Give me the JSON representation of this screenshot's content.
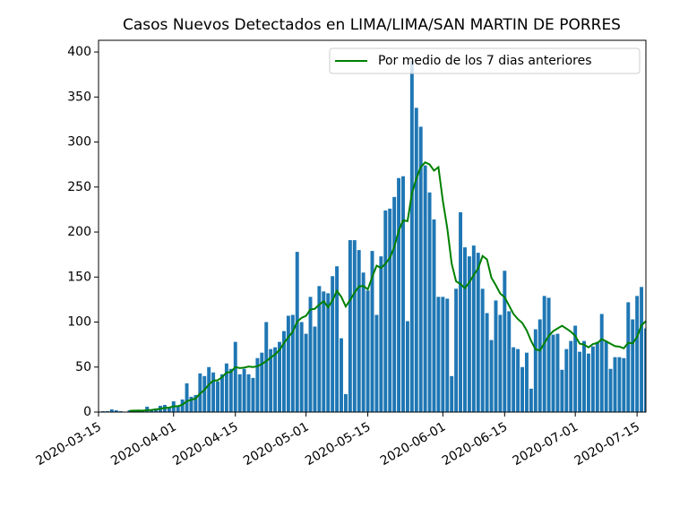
{
  "chart_data": {
    "type": "bar",
    "title": "Casos Nuevos Detectados en LIMA/LIMA/SAN MARTIN DE PORRES",
    "x": [
      "2020-03-16",
      "2020-03-17",
      "2020-03-18",
      "2020-03-19",
      "2020-03-20",
      "2020-03-21",
      "2020-03-22",
      "2020-03-23",
      "2020-03-24",
      "2020-03-25",
      "2020-03-26",
      "2020-03-27",
      "2020-03-28",
      "2020-03-29",
      "2020-03-30",
      "2020-03-31",
      "2020-04-01",
      "2020-04-02",
      "2020-04-03",
      "2020-04-04",
      "2020-04-05",
      "2020-04-06",
      "2020-04-07",
      "2020-04-08",
      "2020-04-09",
      "2020-04-10",
      "2020-04-11",
      "2020-04-12",
      "2020-04-13",
      "2020-04-14",
      "2020-04-15",
      "2020-04-16",
      "2020-04-17",
      "2020-04-18",
      "2020-04-19",
      "2020-04-20",
      "2020-04-21",
      "2020-04-22",
      "2020-04-23",
      "2020-04-24",
      "2020-04-25",
      "2020-04-26",
      "2020-04-27",
      "2020-04-28",
      "2020-04-29",
      "2020-04-30",
      "2020-05-01",
      "2020-05-02",
      "2020-05-03",
      "2020-05-04",
      "2020-05-05",
      "2020-05-06",
      "2020-05-07",
      "2020-05-08",
      "2020-05-09",
      "2020-05-10",
      "2020-05-11",
      "2020-05-12",
      "2020-05-13",
      "2020-05-14",
      "2020-05-15",
      "2020-05-16",
      "2020-05-17",
      "2020-05-18",
      "2020-05-19",
      "2020-05-20",
      "2020-05-21",
      "2020-05-22",
      "2020-05-23",
      "2020-05-24",
      "2020-05-25",
      "2020-05-26",
      "2020-05-27",
      "2020-05-28",
      "2020-05-29",
      "2020-05-30",
      "2020-05-31",
      "2020-06-01",
      "2020-06-02",
      "2020-06-03",
      "2020-06-04",
      "2020-06-05",
      "2020-06-06",
      "2020-06-07",
      "2020-06-08",
      "2020-06-09",
      "2020-06-10",
      "2020-06-11",
      "2020-06-12",
      "2020-06-13",
      "2020-06-14",
      "2020-06-15",
      "2020-06-16",
      "2020-06-17",
      "2020-06-18",
      "2020-06-19",
      "2020-06-20",
      "2020-06-21",
      "2020-06-22",
      "2020-06-23",
      "2020-06-24",
      "2020-06-25",
      "2020-06-26",
      "2020-06-27",
      "2020-06-28",
      "2020-06-29",
      "2020-06-30",
      "2020-07-01",
      "2020-07-02",
      "2020-07-03",
      "2020-07-04",
      "2020-07-05",
      "2020-07-06",
      "2020-07-07",
      "2020-07-08",
      "2020-07-09",
      "2020-07-10",
      "2020-07-11",
      "2020-07-12",
      "2020-07-13",
      "2020-07-14",
      "2020-07-15",
      "2020-07-16",
      "2020-07-17"
    ],
    "values": [
      1,
      1,
      3,
      2,
      1,
      0,
      2,
      2,
      2,
      2,
      6,
      3,
      4,
      7,
      8,
      5,
      12,
      7,
      14,
      32,
      17,
      19,
      43,
      40,
      50,
      44,
      34,
      42,
      54,
      48,
      78,
      42,
      48,
      42,
      38,
      60,
      66,
      100,
      70,
      72,
      78,
      90,
      107,
      108,
      178,
      100,
      87,
      128,
      95,
      140,
      134,
      132,
      151,
      162,
      82,
      20,
      191,
      191,
      180,
      155,
      135,
      179,
      108,
      173,
      224,
      226,
      239,
      260,
      262,
      101,
      390,
      338,
      317,
      274,
      244,
      214,
      128,
      128,
      126,
      40,
      137,
      222,
      183,
      173,
      185,
      177,
      137,
      110,
      80,
      124,
      108,
      157,
      112,
      72,
      70,
      50,
      66,
      26,
      92,
      103,
      129,
      127,
      86,
      87,
      47,
      70,
      79,
      96,
      67,
      79,
      65,
      73,
      78,
      109,
      79,
      48,
      61,
      61,
      60,
      122,
      103,
      129,
      139,
      93
    ],
    "color": "#1f77b4",
    "series": [
      {
        "name": "Por medio de los 7 dias anteriores",
        "color": "#008000",
        "values": [
          null,
          null,
          null,
          null,
          null,
          null,
          1.4,
          1.6,
          1.7,
          1.6,
          2.1,
          2.4,
          3.0,
          3.7,
          4.6,
          5.0,
          6.4,
          6.6,
          8.1,
          12.1,
          13.6,
          15.1,
          20.6,
          24.6,
          30.7,
          35.0,
          35.3,
          38.9,
          43.9,
          44.6,
          50.0,
          48.9,
          49.4,
          50.6,
          50.0,
          50.9,
          53.4,
          56.6,
          60.6,
          64.0,
          69.1,
          76.6,
          83.3,
          89.3,
          100.4,
          104.7,
          106.9,
          114.0,
          114.7,
          119.4,
          123.1,
          116.6,
          123.9,
          134.6,
          128.0,
          117.3,
          124.6,
          132.7,
          139.6,
          140.1,
          136.3,
          150.1,
          162.7,
          160.1,
          164.9,
          171.4,
          183.4,
          201.3,
          213.1,
          212.1,
          243.1,
          259.4,
          272.4,
          277.4,
          275.1,
          268.3,
          272.1,
          234.7,
          204.4,
          164.9,
          145.3,
          142.1,
          137.7,
          144.1,
          152.3,
          159.6,
          173.4,
          169.6,
          149.3,
          140.9,
          131.6,
          127.6,
          118.3,
          109.0,
          103.3,
          99.0,
          90.7,
          79.0,
          69.7,
          68.4,
          76.6,
          84.7,
          89.9,
          92.9,
          95.9,
          92.7,
          89.3,
          84.6,
          76.0,
          75.0,
          71.9,
          75.6,
          76.7,
          81.0,
          78.6,
          75.9,
          73.3,
          72.7,
          70.9,
          77.1,
          76.3,
          83.4,
          96.4,
          101.0
        ]
      }
    ],
    "xlim": [
      "2020-03-15",
      "2020-07-17"
    ],
    "xticks": [
      "2020-03-15",
      "2020-04-01",
      "2020-04-15",
      "2020-05-01",
      "2020-05-15",
      "2020-06-01",
      "2020-06-15",
      "2020-07-01",
      "2020-07-15"
    ],
    "ylim": [
      0,
      413
    ],
    "yticks": [
      0,
      50,
      100,
      150,
      200,
      250,
      300,
      350,
      400
    ],
    "legend": "upper right"
  }
}
